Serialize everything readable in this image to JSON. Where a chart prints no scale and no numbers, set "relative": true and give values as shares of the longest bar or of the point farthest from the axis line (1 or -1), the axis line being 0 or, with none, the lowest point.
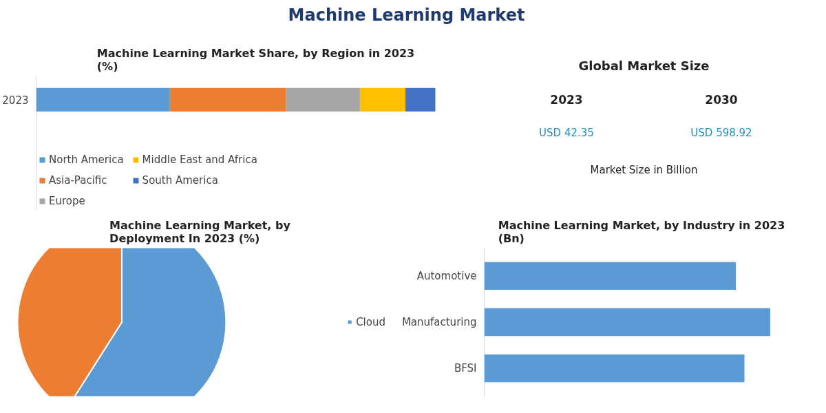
{
  "chart_data": [
    {
      "type": "other",
      "title": "Machine Learning Market"
    },
    {
      "type": "bar",
      "title": "Machine Learning Market Share, by Region in 2023 (%)",
      "orientation": "horizontal",
      "stacked": true,
      "relative": true,
      "categories": [
        "2023"
      ],
      "legend": "bottom",
      "grid": false,
      "series": [
        {
          "name": "North America",
          "color": "#5b9bd5",
          "values": [
            0.335
          ]
        },
        {
          "name": "Asia-Pacific",
          "color": "#ed7d31",
          "values": [
            0.291
          ]
        },
        {
          "name": "Europe",
          "color": "#a5a5a5",
          "values": [
            0.185
          ]
        },
        {
          "name": "Middle East and Africa",
          "color": "#ffc000",
          "values": [
            0.114
          ]
        },
        {
          "name": "South America",
          "color": "#4472c4",
          "values": [
            0.075
          ]
        }
      ]
    },
    {
      "type": "other",
      "title": "Global Market Size",
      "annotations": [
        "2023",
        "2030",
        "USD 42.35",
        "USD 598.92",
        "Market Size in Billion"
      ]
    },
    {
      "type": "pie",
      "title": "Machine Learning Market, by Deployment In 2023 (%)",
      "categories": [
        "Cloud",
        null
      ],
      "values": [
        59,
        41
      ],
      "colors": [
        "#5b9bd5",
        "#ed7d31"
      ],
      "legend": "right"
    },
    {
      "type": "bar",
      "title": "Machine Learning Market, by Industry in 2023 (Bn)",
      "orientation": "horizontal",
      "relative": true,
      "categories": [
        "Automotive",
        "Manufacturing",
        "BFSI"
      ],
      "values": [
        0.88,
        1,
        0.91
      ],
      "color": "#5b9bd5",
      "grid": false
    }
  ]
}
